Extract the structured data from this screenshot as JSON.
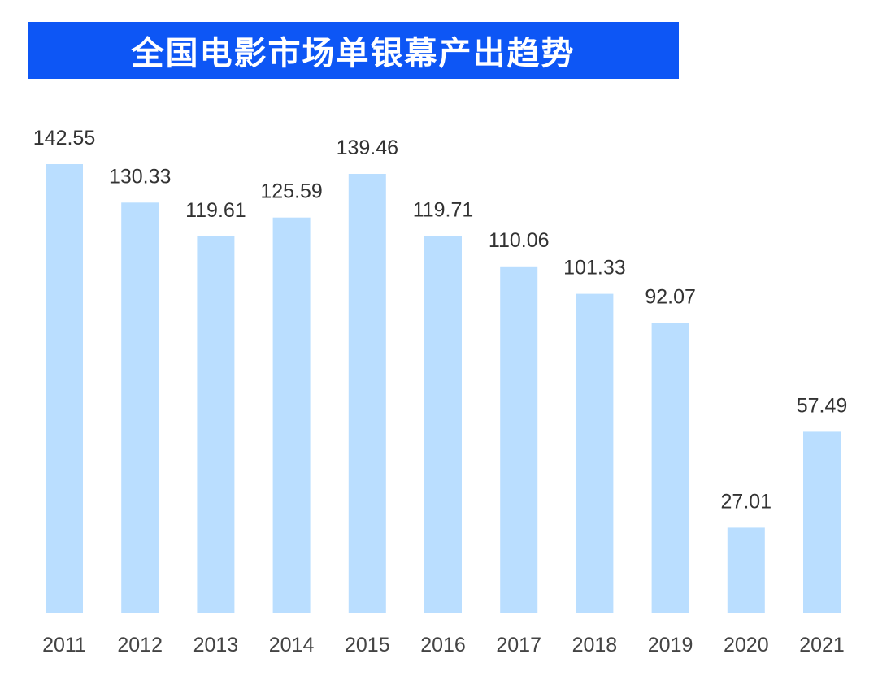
{
  "colors": {
    "banner": "#0d56f5",
    "bar": "#badeff",
    "baseline": "#cccccc"
  },
  "chart_data": {
    "type": "bar",
    "title": "全国电影市场单银幕产出趋势",
    "xlabel": "",
    "ylabel": "",
    "categories": [
      "2011",
      "2012",
      "2013",
      "2014",
      "2015",
      "2016",
      "2017",
      "2018",
      "2019",
      "2020",
      "2021"
    ],
    "values": [
      142.55,
      130.33,
      119.61,
      125.59,
      139.46,
      119.71,
      110.06,
      101.33,
      92.07,
      27.01,
      57.49
    ],
    "value_labels": [
      "142.55",
      "130.33",
      "119.61",
      "125.59",
      "139.46",
      "119.71",
      "110.06",
      "101.33",
      "92.07",
      "27.01",
      "57.49"
    ],
    "ylim": [
      0,
      142.55
    ],
    "grid": false,
    "legend": "none",
    "data_labels": true
  }
}
